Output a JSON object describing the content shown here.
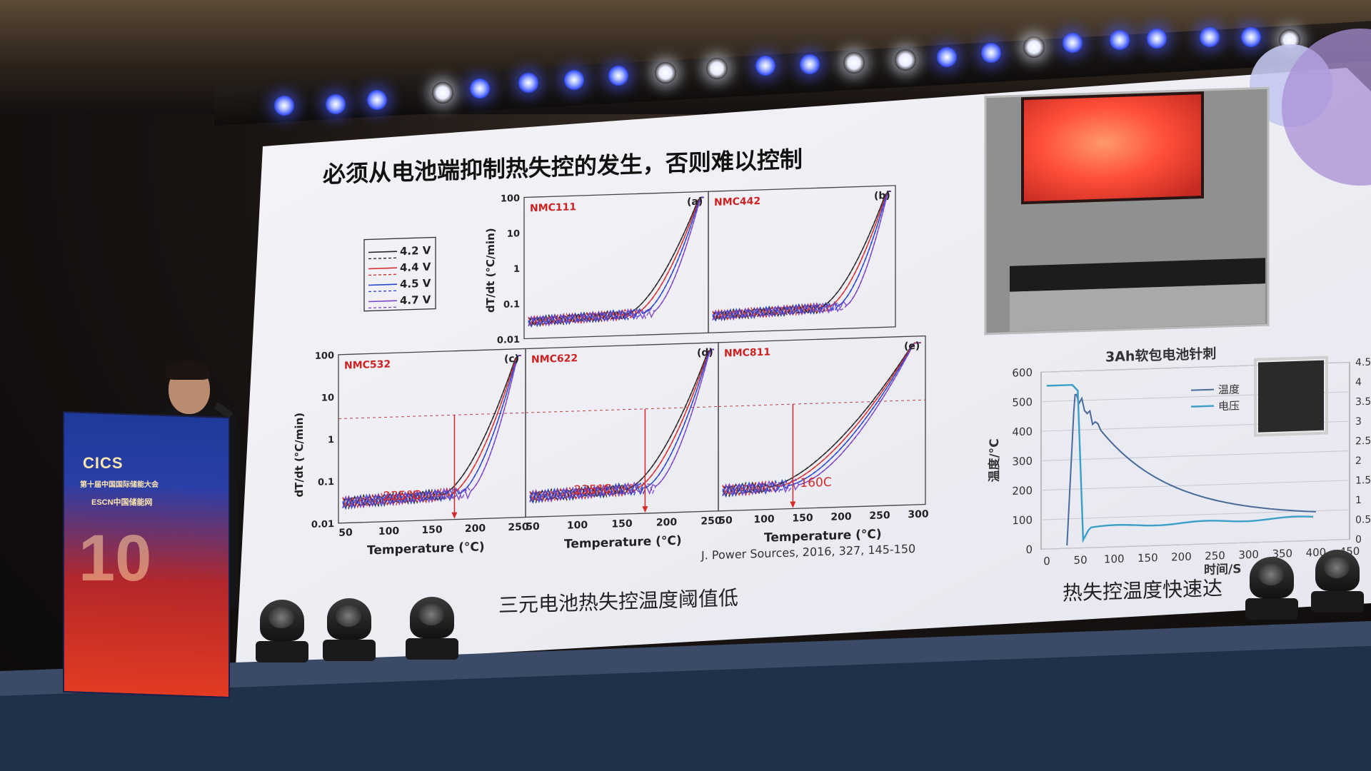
{
  "slide": {
    "title": "必须从电池端抑制热失控的发生，否则难以控制",
    "reference": "J. Power Sources, 2016, 327, 145-150",
    "caption_left": "三元电池热失控温度阈值低",
    "caption_right": "热失控温度快速达"
  },
  "left_figure": {
    "legend": [
      "4.2 V",
      "4.4 V",
      "4.5 V",
      "4.7 V"
    ],
    "ylabel": "dT/dt (°C/min)",
    "xlabel": "Temperature (°C)",
    "y_ticks_top": [
      "100",
      "10",
      "1",
      "0.1",
      "0.01"
    ],
    "y_ticks_bottom": [
      "100",
      "10",
      "1",
      "0.1",
      "0.01"
    ],
    "x_ticks_c": [
      "50",
      "100",
      "150",
      "200",
      "250"
    ],
    "x_ticks_d": [
      "50",
      "100",
      "150",
      "200",
      "250"
    ],
    "x_ticks_e": [
      "50",
      "100",
      "150",
      "200",
      "250",
      "300"
    ],
    "panels": [
      {
        "letter": "(a)",
        "material": "NMC111",
        "threshold": ""
      },
      {
        "letter": "(b)",
        "material": "NMC442",
        "threshold": ""
      },
      {
        "letter": "(c)",
        "material": "NMC532",
        "threshold": "225°C"
      },
      {
        "letter": "(d)",
        "material": "NMC622",
        "threshold": "235°C"
      },
      {
        "letter": "(e)",
        "material": "NMC811",
        "threshold": "160C"
      }
    ]
  },
  "right_figure": {
    "title": "3Ah软包电池针刺",
    "ylabel": "温度/°C",
    "xlabel": "时间/S",
    "legend": [
      "温度",
      "电压"
    ],
    "y_ticks_left": [
      "600",
      "500",
      "400",
      "300",
      "200",
      "100",
      "0"
    ],
    "y_ticks_right": [
      "4.5",
      "4",
      "3.5",
      "3",
      "2.5",
      "2",
      "1.5",
      "1",
      "0.5",
      "0"
    ],
    "x_ticks": [
      "0",
      "50",
      "100",
      "150",
      "200",
      "250",
      "300",
      "350",
      "400",
      "450"
    ]
  },
  "podium": {
    "logo": "CICS",
    "line1": "第十届中国国际储能大会",
    "line2": "ESCN中国储能网",
    "number": "10"
  },
  "colors": {
    "screen": "#f1f1f6",
    "nmc_label": "#cc2222",
    "series_black": "#222222",
    "series_red": "#d42a2a",
    "series_blue": "#2244cc",
    "series_purple": "#7a44c4",
    "threshold_red": "#d42a2a",
    "temp_line": "#4a6a9a",
    "volt_line": "#3aa0c8",
    "led_blue": "#3d55ff",
    "podium_blue": "#2a3fa8",
    "podium_red": "#e23b22"
  }
}
